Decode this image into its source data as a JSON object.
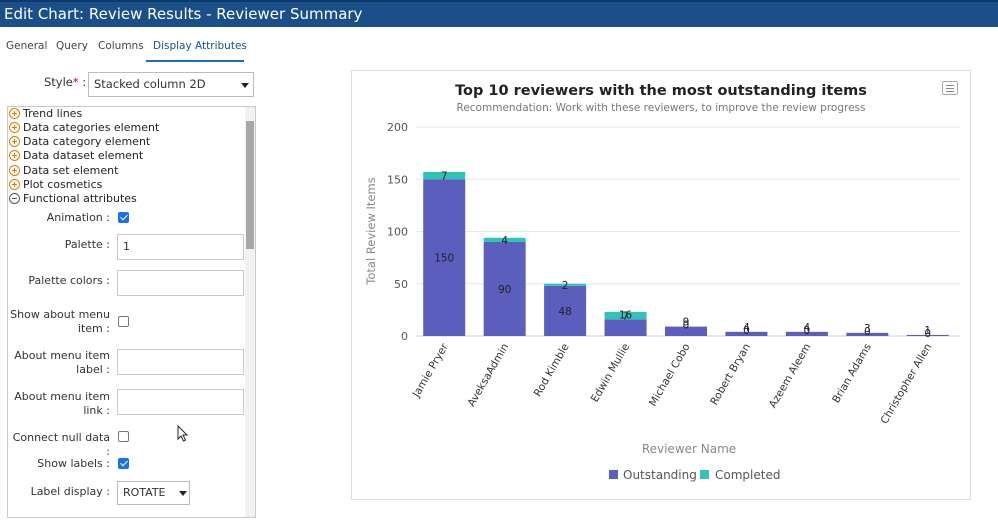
{
  "window": {
    "title": "Edit Chart: Review Results - Reviewer Summary"
  },
  "tabs": [
    {
      "label": "General"
    },
    {
      "label": "Query"
    },
    {
      "label": "Columns"
    },
    {
      "label": "Display Attributes",
      "active": true
    }
  ],
  "style_field": {
    "label": "Style",
    "required_mark": "*",
    "colon": ":",
    "value": "Stacked column 2D"
  },
  "tree": [
    {
      "label": "Trend lines",
      "state": "collapsed"
    },
    {
      "label": "Data categories element",
      "state": "collapsed"
    },
    {
      "label": "Data category element",
      "state": "collapsed"
    },
    {
      "label": "Data dataset element",
      "state": "collapsed"
    },
    {
      "label": "Data set element",
      "state": "collapsed"
    },
    {
      "label": "Plot cosmetics",
      "state": "collapsed"
    },
    {
      "label": "Functional attributes",
      "state": "expanded"
    }
  ],
  "functional_attributes": {
    "animation": {
      "label": "Animation :",
      "checked": true
    },
    "palette": {
      "label": "Palette :",
      "value": "1"
    },
    "palette_colors": {
      "label": "Palette colors :",
      "value": ""
    },
    "show_about_menu_item": {
      "label": "Show about menu item",
      "colon": ":",
      "checked": false
    },
    "about_menu_item_label": {
      "label": "About menu item label",
      "colon": ":",
      "value": ""
    },
    "about_menu_item_link": {
      "label": "About menu item link",
      "colon": ":",
      "value": ""
    },
    "connect_null_data": {
      "label": "Connect null data :",
      "checked": false
    },
    "show_labels": {
      "label": "Show labels :",
      "checked": true
    },
    "label_display": {
      "label": "Label display :",
      "value": "ROTATE"
    }
  },
  "icons": {
    "dropdown": "chevron-down-icon",
    "expand": "plus-circle-icon",
    "collapse": "minus-circle-icon",
    "chart_menu": "hamburger-menu-icon",
    "cursor": "mouse-pointer-icon"
  },
  "colors": {
    "titlebar": "#1b4f8a",
    "outstanding": "#5b5ebd",
    "completed": "#2ec4b6",
    "expand_icon": "#e07b00",
    "checkbox": "#1a73e8"
  },
  "chart_data": {
    "type": "bar",
    "stacked": true,
    "title": "Top 10 reviewers with the most outstanding items",
    "subtitle": "Recommendation: Work with these reviewers, to improve the review progress",
    "xlabel": "Reviewer Name",
    "ylabel": "Total Review Items",
    "ylim": [
      0,
      200
    ],
    "yticks": [
      0,
      50,
      100,
      150,
      200
    ],
    "grid": true,
    "legend_position": "bottom",
    "categories": [
      "Jamie Pryer",
      "AveksaAdmin",
      "Rod Kimble",
      "Edwin Mullie",
      "Michael Cobo",
      "Robert Bryan",
      "Azeem Aleem",
      "Brian Adams",
      "Christopher Allen"
    ],
    "series": [
      {
        "name": "Outstanding",
        "values": [
          150,
          90,
          48,
          16,
          9,
          4,
          4,
          3,
          1
        ]
      },
      {
        "name": "Completed",
        "values": [
          7,
          4,
          2,
          7,
          0,
          0,
          0,
          0,
          0
        ]
      }
    ],
    "data_labels": [
      {
        "outstanding": "150",
        "completed": "7"
      },
      {
        "outstanding": "90",
        "completed": "4"
      },
      {
        "outstanding": "48",
        "completed": "2"
      },
      {
        "outstanding": "16",
        "completed": "7"
      },
      {
        "outstanding": "9",
        "completed": "0"
      },
      {
        "outstanding": "4",
        "completed": "0"
      },
      {
        "outstanding": "4",
        "completed": "0"
      },
      {
        "outstanding": "3",
        "completed": "0"
      },
      {
        "outstanding": "1",
        "completed": "0"
      }
    ]
  }
}
